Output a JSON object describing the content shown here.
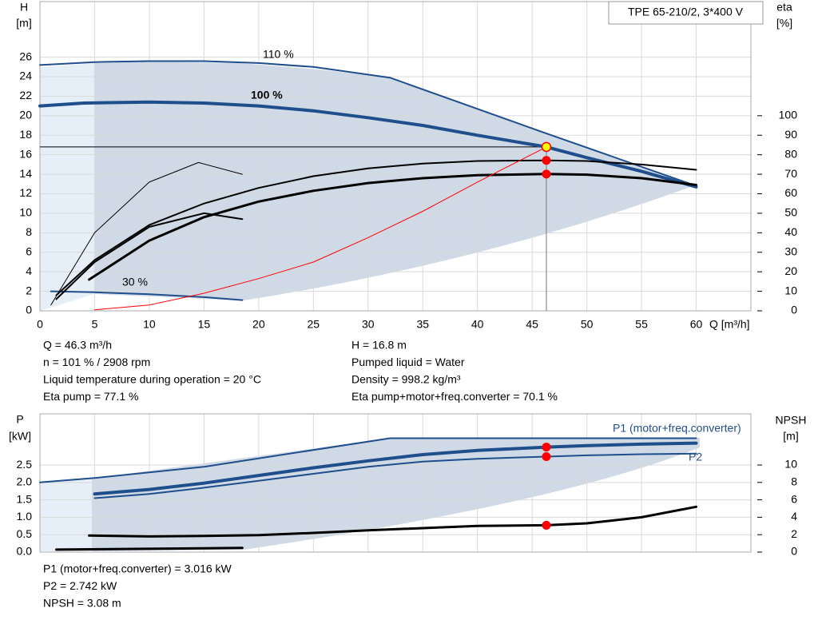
{
  "chart_data": [
    {
      "type": "line",
      "title": "TPE 65-210/2, 3*400 V",
      "ylabel": "H",
      "yunit": "[m]",
      "y2label": "eta",
      "y2unit": "[%]",
      "xlabel": "Q [m³/h]",
      "xlim": [
        0,
        65
      ],
      "xticks": [
        0,
        5,
        10,
        15,
        20,
        25,
        30,
        35,
        40,
        45,
        50,
        55,
        60
      ],
      "xtick_labels": true,
      "ylim": [
        0,
        31.7
      ],
      "yticks": [
        0,
        2,
        4,
        6,
        8,
        10,
        12,
        14,
        16,
        18,
        20,
        22,
        24,
        26
      ],
      "y2lim": [
        0,
        158.5
      ],
      "y2ticks": [
        0,
        10,
        20,
        30,
        40,
        50,
        60,
        70,
        80,
        90,
        100
      ],
      "grid": true,
      "series": [
        {
          "name": "110 %",
          "color": "#1f4e8c",
          "width": 2,
          "x": [
            0,
            5,
            10,
            15,
            20,
            25,
            32,
            46,
            60
          ],
          "values": [
            25.2,
            25.5,
            25.6,
            25.6,
            25.4,
            25,
            23.9,
            18.3,
            12.8
          ]
        },
        {
          "name": "100 %",
          "color": "#1f4e8c",
          "width": 4,
          "x": [
            0,
            4,
            10,
            15,
            20,
            25,
            30,
            35,
            40,
            46.3,
            50,
            55,
            60
          ],
          "values": [
            21,
            21.3,
            21.4,
            21.3,
            21,
            20.5,
            19.8,
            19,
            18,
            16.8,
            15.7,
            14.3,
            12.7
          ]
        },
        {
          "name": "30 %",
          "color": "#1f4e8c",
          "width": 2,
          "x": [
            1,
            5,
            10,
            15,
            18.5
          ],
          "values": [
            2,
            1.9,
            1.7,
            1.4,
            1.1
          ]
        },
        {
          "color": "#000000",
          "width": 2,
          "axis": "y2",
          "x": [
            1.5,
            5,
            10,
            15,
            20,
            25,
            30,
            35,
            40,
            46.3,
            50,
            55,
            60
          ],
          "values": [
            8,
            26,
            44,
            55,
            63,
            69,
            73,
            75.5,
            76.8,
            77.1,
            76.8,
            75,
            72.3
          ]
        },
        {
          "color": "#000000",
          "width": 3,
          "axis": "y2",
          "x": [
            4.5,
            10,
            15,
            20,
            25,
            30,
            35,
            40,
            46.3,
            50,
            55,
            60
          ],
          "values": [
            16,
            36,
            48,
            56,
            61.5,
            65.5,
            68,
            69.5,
            70.1,
            69.8,
            68,
            64.5
          ]
        },
        {
          "color": "#000000",
          "width": 1,
          "axis": "y2",
          "x": [
            1,
            5,
            10,
            14.5,
            18.5
          ],
          "values": [
            3,
            40,
            66,
            76,
            70
          ]
        },
        {
          "color": "#000000",
          "width": 2,
          "axis": "y2",
          "x": [
            1.5,
            5,
            10,
            15,
            18.5
          ],
          "values": [
            6,
            25,
            43,
            50,
            47
          ]
        },
        {
          "color": "#ff0000",
          "width": 1,
          "x": [
            5,
            10,
            15,
            20,
            25,
            30,
            35,
            40,
            46.3
          ],
          "values": [
            0.1,
            0.6,
            1.8,
            3.3,
            5,
            7.5,
            10.2,
            13.2,
            16.8
          ]
        }
      ],
      "operating_point": {
        "x": 46.3,
        "guide": true,
        "points": [
          {
            "value": 16.8,
            "axis": "y",
            "color": "#ffff00"
          },
          {
            "value": 77.1,
            "axis": "y2",
            "color": "#ff0000"
          },
          {
            "value": 70.1,
            "axis": "y2",
            "color": "#ff0000"
          }
        ]
      },
      "info": [
        [
          "Q = 46.3 m³/h",
          "n = 101 % / 2908 rpm",
          "Liquid temperature during operation = 20 °C",
          "Eta pump = 77.1 %"
        ],
        [
          "H = 16.8 m",
          "Pumped liquid = Water",
          "Density = 998.2 kg/m³",
          "Eta pump+motor+freq.converter = 70.1 %"
        ]
      ]
    },
    {
      "type": "line",
      "ylabel": "P",
      "yunit": "[kW]",
      "y2label": "NPSH",
      "y2unit": "[m]",
      "xlim": [
        0,
        65
      ],
      "xticks": [
        0,
        5,
        10,
        15,
        20,
        25,
        30,
        35,
        40,
        45,
        50,
        55,
        60
      ],
      "xtick_labels": false,
      "ylim": [
        0,
        3.97
      ],
      "yticks": [
        {
          "value": 0,
          "label": "0.0"
        },
        0.5,
        {
          "value": 1,
          "label": "1.0"
        },
        1.5,
        {
          "value": 2,
          "label": "2.0"
        },
        2.5
      ],
      "y2lim": [
        0,
        15.87
      ],
      "y2ticks": [
        0,
        2,
        4,
        6,
        8,
        10
      ],
      "grid": true,
      "series": [
        {
          "name": "P1 (motor+freq.converter)",
          "color": "#1f4e8c",
          "width": 4,
          "x": [
            5,
            10,
            15,
            20,
            25,
            30,
            35,
            40,
            46.3,
            50,
            55,
            60
          ],
          "values": [
            1.67,
            1.8,
            1.98,
            2.2,
            2.42,
            2.62,
            2.8,
            2.92,
            3.016,
            3.06,
            3.1,
            3.13
          ]
        },
        {
          "name": "P2",
          "color": "#1f4e8c",
          "width": 2,
          "x": [
            5,
            10,
            15,
            20,
            25,
            30,
            35,
            40,
            46.3,
            50,
            55,
            60
          ],
          "values": [
            1.55,
            1.67,
            1.85,
            2.05,
            2.25,
            2.45,
            2.6,
            2.68,
            2.742,
            2.78,
            2.81,
            2.83
          ]
        },
        {
          "color": "#1f4e8c",
          "width": 2,
          "x": [
            0,
            5,
            15,
            32,
            60
          ],
          "values": [
            2.0,
            2.13,
            2.45,
            3.27,
            3.27
          ]
        },
        {
          "color": "#000000",
          "width": 3,
          "axis": "y2",
          "x": [
            4.5,
            10,
            15,
            20,
            25,
            30,
            35,
            40,
            46.3,
            50,
            55,
            60
          ],
          "values": [
            1.9,
            1.8,
            1.85,
            1.95,
            2.2,
            2.5,
            2.75,
            3.0,
            3.08,
            3.3,
            4.0,
            5.2
          ]
        },
        {
          "color": "#000000",
          "width": 3,
          "x": [
            1.5,
            18.5
          ],
          "values": [
            0.07,
            0.12
          ]
        }
      ],
      "operating_point": {
        "x": 46.3,
        "guide": false,
        "points": [
          {
            "value": 3.016,
            "axis": "y",
            "color": "#ff0000"
          },
          {
            "value": 2.742,
            "axis": "y",
            "color": "#ff0000"
          },
          {
            "value": 3.08,
            "axis": "y2",
            "color": "#ff0000"
          }
        ]
      },
      "info": [
        [
          "P1 (motor+freq.converter) = 3.016 kW",
          "P2 = 2.742 kW",
          "NPSH = 3.08 m"
        ]
      ]
    }
  ]
}
